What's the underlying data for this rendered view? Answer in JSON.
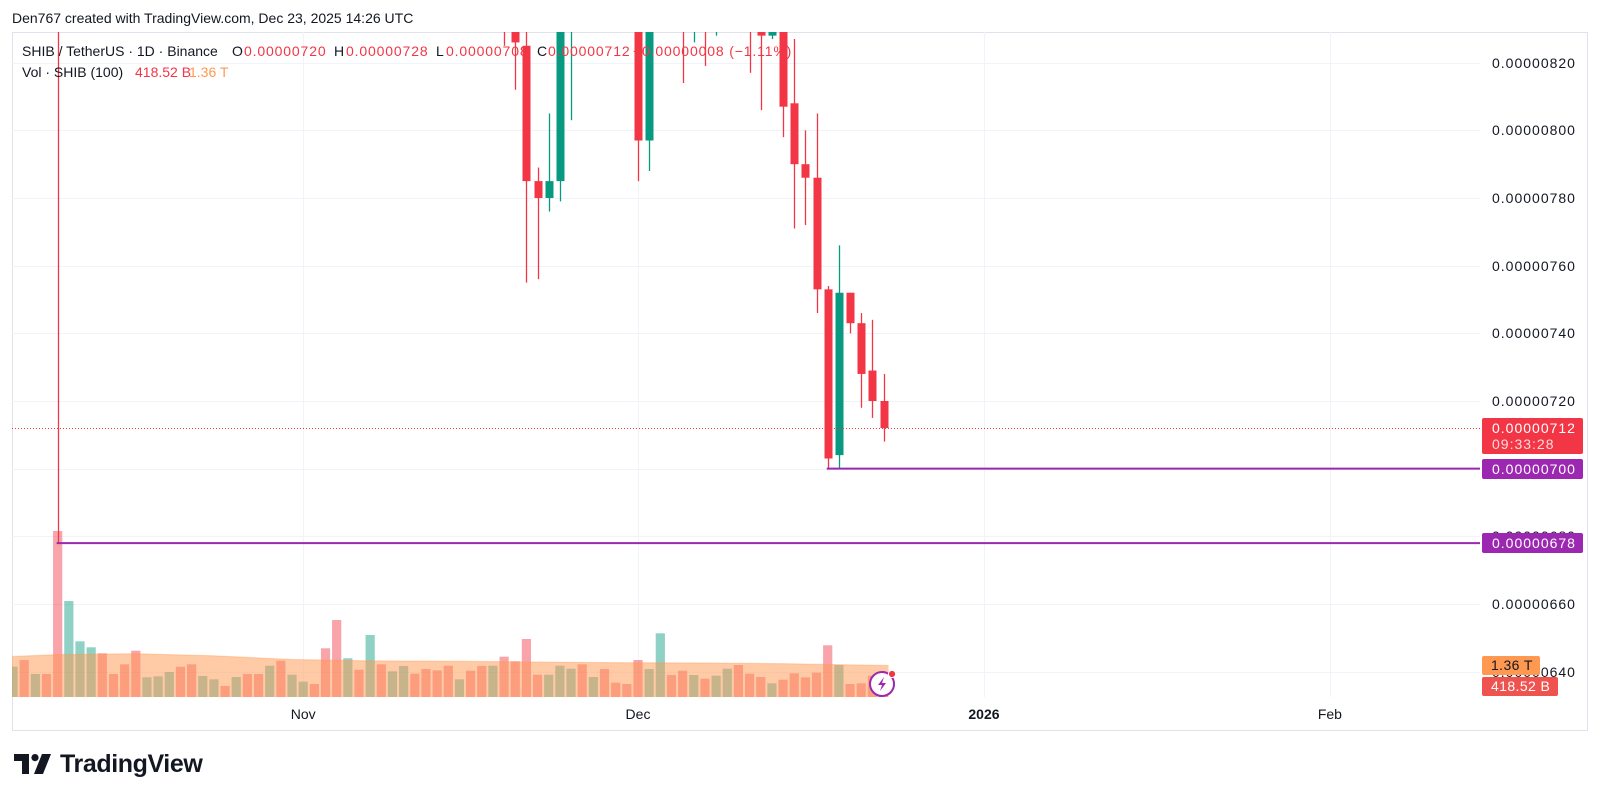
{
  "header": {
    "attribution": "Den767 created with TradingView.com, Dec 23, 2025 14:26 UTC"
  },
  "legend": {
    "symbol": "SHIB / TetherUS · 1D · Binance",
    "o_label": "O",
    "o_value": "0.00000720",
    "h_label": "H",
    "h_value": "0.00000728",
    "l_label": "L",
    "l_value": "0.00000708",
    "c_label": "C",
    "c_value": "0.00000712",
    "change": "−0.00000008 (−1.11%)",
    "vol_label": "Vol · SHIB (100)",
    "vol_value": "418.52 B",
    "vol_ma_value": "1.36 T"
  },
  "price_axis": {
    "ticks": [
      "0.00000820",
      "0.00000800",
      "0.00000780",
      "0.00000760",
      "0.00000740",
      "0.00000720",
      "0.00000700",
      "0.00000680",
      "0.00000660",
      "0.00000640"
    ],
    "current_price": {
      "value": "0.00000712",
      "countdown": "09:33:28"
    },
    "line_labels": [
      "0.00000700",
      "0.00000678"
    ],
    "volume_ma_label": "1.36 T",
    "volume_label": "418.52 B"
  },
  "time_axis": {
    "labels": [
      {
        "text": "Nov",
        "date": "2025-11-01",
        "bold": false
      },
      {
        "text": "Dec",
        "date": "2025-12-01",
        "bold": false
      },
      {
        "text": "2026",
        "date": "2026-01-01",
        "bold": true
      },
      {
        "text": "Feb",
        "date": "2026-02-01",
        "bold": false
      }
    ]
  },
  "footer": {
    "logo_text": "TradingView"
  },
  "colors": {
    "up": "#089981",
    "down": "#f23645",
    "horizontal_line": "#9c27b0",
    "volume_ma": "#ff9850",
    "text": "#131722",
    "grid": "#f0f3fa",
    "notification_dot": "#f23645"
  },
  "chart_data": {
    "type": "candlestick",
    "title": "SHIB / TetherUS · 1D · Binance",
    "interval": "1D",
    "xlabel": "",
    "ylabel": "",
    "ylim": [
      6.32e-06,
      8.29e-06
    ],
    "y_ticks": [
      "0.00000820",
      "0.00000800",
      "0.00000780",
      "0.00000760",
      "0.00000740",
      "0.00000720",
      "0.00000700",
      "0.00000680",
      "0.00000660",
      "0.00000640"
    ],
    "x_ticks": [
      "Nov",
      "Dec",
      "2026",
      "Feb"
    ],
    "grid": true,
    "last": {
      "open": 7.2e-06,
      "high": 7.28e-06,
      "low": 7.08e-06,
      "close": 7.12e-06,
      "change": -8e-08,
      "change_pct": -1.11
    },
    "note": "null price values lie above the visible pane (clipped at top)",
    "candles": [
      {
        "date": "2025-10-10",
        "open": null,
        "high": null,
        "low": 6.78e-06,
        "close": null,
        "dir": "down"
      },
      {
        "date": "2025-11-19",
        "open": null,
        "high": null,
        "low": 8.25e-06,
        "close": null,
        "dir": "down"
      },
      {
        "date": "2025-11-20",
        "open": null,
        "high": null,
        "low": 8.12e-06,
        "close": 8.26e-06,
        "dir": "down"
      },
      {
        "date": "2025-11-21",
        "open": 8.25e-06,
        "high": null,
        "low": 7.55e-06,
        "close": 7.85e-06,
        "dir": "down"
      },
      {
        "date": "2025-11-22",
        "open": 7.85e-06,
        "high": 7.89e-06,
        "low": 7.56e-06,
        "close": 7.8e-06,
        "dir": "down"
      },
      {
        "date": "2025-11-23",
        "open": 7.8e-06,
        "high": 8.05e-06,
        "low": 7.76e-06,
        "close": 7.85e-06,
        "dir": "up"
      },
      {
        "date": "2025-11-24",
        "open": 7.85e-06,
        "high": null,
        "low": 7.79e-06,
        "close": null,
        "dir": "up"
      },
      {
        "date": "2025-11-25",
        "open": null,
        "high": null,
        "low": 8.03e-06,
        "close": null,
        "dir": "up"
      },
      {
        "date": "2025-12-01",
        "open": null,
        "high": null,
        "low": 7.85e-06,
        "close": 7.97e-06,
        "dir": "down"
      },
      {
        "date": "2025-12-02",
        "open": 7.97e-06,
        "high": null,
        "low": 7.88e-06,
        "close": null,
        "dir": "up"
      },
      {
        "date": "2025-12-05",
        "open": null,
        "high": null,
        "low": 8.14e-06,
        "close": null,
        "dir": "down"
      },
      {
        "date": "2025-12-06",
        "open": null,
        "high": null,
        "low": 8.26e-06,
        "close": null,
        "dir": "up"
      },
      {
        "date": "2025-12-07",
        "open": null,
        "high": null,
        "low": 8.19e-06,
        "close": null,
        "dir": "down"
      },
      {
        "date": "2025-12-08",
        "open": null,
        "high": null,
        "low": 8.28e-06,
        "close": null,
        "dir": "up"
      },
      {
        "date": "2025-12-11",
        "open": null,
        "high": null,
        "low": 8.17e-06,
        "close": null,
        "dir": "down"
      },
      {
        "date": "2025-12-12",
        "open": null,
        "high": null,
        "low": 8.06e-06,
        "close": 8.28e-06,
        "dir": "down"
      },
      {
        "date": "2025-12-13",
        "open": 8.28e-06,
        "high": null,
        "low": 8.27e-06,
        "close": null,
        "dir": "up"
      },
      {
        "date": "2025-12-14",
        "open": null,
        "high": null,
        "low": 7.98e-06,
        "close": 8.07e-06,
        "dir": "down"
      },
      {
        "date": "2025-12-15",
        "open": 8.08e-06,
        "high": 8.27e-06,
        "low": 7.71e-06,
        "close": 7.9e-06,
        "dir": "down"
      },
      {
        "date": "2025-12-16",
        "open": 7.9e-06,
        "high": 8e-06,
        "low": 7.72e-06,
        "close": 7.86e-06,
        "dir": "down"
      },
      {
        "date": "2025-12-17",
        "open": 7.86e-06,
        "high": 8.05e-06,
        "low": 7.46e-06,
        "close": 7.53e-06,
        "dir": "down"
      },
      {
        "date": "2025-12-18",
        "open": 7.53e-06,
        "high": 7.54e-06,
        "low": 7e-06,
        "close": 7.03e-06,
        "dir": "down"
      },
      {
        "date": "2025-12-19",
        "open": 7.04e-06,
        "high": 7.66e-06,
        "low": 7e-06,
        "close": 7.52e-06,
        "dir": "up"
      },
      {
        "date": "2025-12-20",
        "open": 7.52e-06,
        "high": 7.52e-06,
        "low": 7.4e-06,
        "close": 7.43e-06,
        "dir": "down"
      },
      {
        "date": "2025-12-21",
        "open": 7.43e-06,
        "high": 7.46e-06,
        "low": 7.18e-06,
        "close": 7.28e-06,
        "dir": "down"
      },
      {
        "date": "2025-12-22",
        "open": 7.29e-06,
        "high": 7.44e-06,
        "low": 7.15e-06,
        "close": 7.2e-06,
        "dir": "down"
      },
      {
        "date": "2025-12-23",
        "open": 7.2e-06,
        "high": 7.28e-06,
        "low": 7.08e-06,
        "close": 7.12e-06,
        "dir": "down"
      }
    ],
    "volume": {
      "name": "Vol · SHIB",
      "unit": "B",
      "start_date": "2025-10-06",
      "values": [
        1309,
        1598,
        994,
        994,
        7171,
        4147,
        2406,
        2147,
        1888,
        994,
        1413,
        2000,
        851,
        894,
        1080,
        1309,
        1413,
        907,
        765,
        475,
        864,
        994,
        994,
        1352,
        1568,
        963,
        661,
        562,
        2104,
        3326,
        1672,
        1179,
        2678,
        1413,
        1110,
        1339,
        1007,
        1210,
        1153,
        1352,
        765,
        1136,
        1339,
        1352,
        1741,
        1542,
        2506,
        963,
        963,
        1352,
        1223,
        1413,
        864,
        1210,
        618,
        562,
        1598,
        1210,
        2752,
        950,
        1136,
        950,
        791,
        920,
        1223,
        1382,
        1007,
        864,
        592,
        747,
        1024,
        851,
        1050,
        2233,
        1382,
        562,
        592,
        920,
        418.52
      ],
      "direction": [
        "up",
        "down",
        "up",
        "down",
        "down",
        "up",
        "up",
        "up",
        "down",
        "down",
        "down",
        "down",
        "up",
        "up",
        "up",
        "down",
        "down",
        "up",
        "up",
        "down",
        "up",
        "down",
        "down",
        "up",
        "down",
        "up",
        "up",
        "down",
        "down",
        "down",
        "up",
        "down",
        "up",
        "down",
        "up",
        "up",
        "down",
        "down",
        "down",
        "down",
        "up",
        "down",
        "down",
        "up",
        "down",
        "down",
        "down",
        "down",
        "up",
        "up",
        "up",
        "down",
        "up",
        "down",
        "down",
        "down",
        "down",
        "up",
        "up",
        "down",
        "down",
        "up",
        "down",
        "up",
        "up",
        "down",
        "down",
        "down",
        "up",
        "down",
        "down",
        "down",
        "down",
        "down",
        "up",
        "down",
        "down",
        "down",
        "down"
      ]
    },
    "volume_ma": {
      "period": 100,
      "unit": "B",
      "points": [
        {
          "date": "2025-10-06",
          "value": 1741
        },
        {
          "date": "2025-10-10",
          "value": 1830
        },
        {
          "date": "2025-10-17",
          "value": 1870
        },
        {
          "date": "2025-10-24",
          "value": 1780
        },
        {
          "date": "2025-10-31",
          "value": 1620
        },
        {
          "date": "2025-11-07",
          "value": 1560
        },
        {
          "date": "2025-11-15",
          "value": 1545
        },
        {
          "date": "2025-11-22",
          "value": 1510
        },
        {
          "date": "2025-11-30",
          "value": 1480
        },
        {
          "date": "2025-12-07",
          "value": 1470
        },
        {
          "date": "2025-12-14",
          "value": 1440
        },
        {
          "date": "2025-12-20",
          "value": 1390
        },
        {
          "date": "2025-12-23",
          "value": 1360
        }
      ]
    },
    "horizontal_lines": [
      {
        "value": 7e-06,
        "from_date": "2025-12-18",
        "label": "0.00000700"
      },
      {
        "value": 6.78e-06,
        "from_date": "2025-10-10",
        "label": "0.00000678"
      }
    ],
    "last_price_line": {
      "value": 7.12e-06,
      "style": "dotted"
    }
  }
}
